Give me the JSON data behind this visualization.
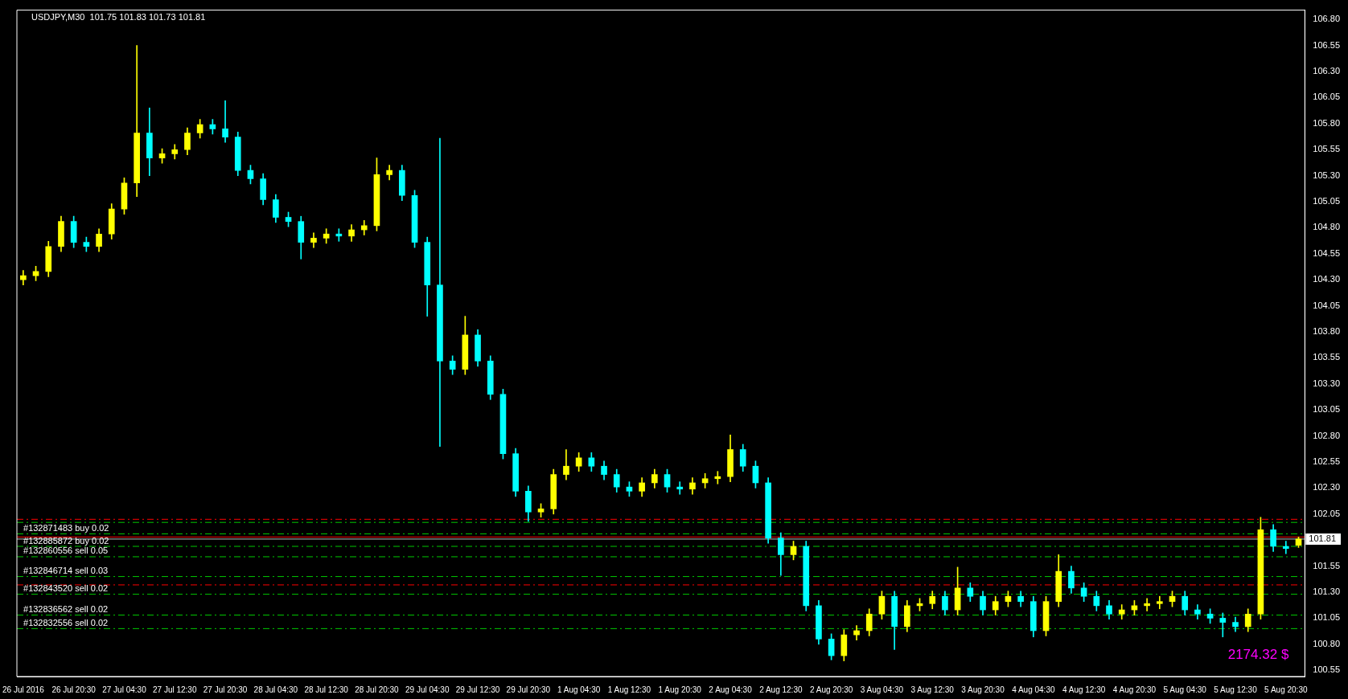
{
  "chart_data": {
    "type": "candlestick",
    "title": "USDJPY,M30  101.75 101.83 101.73 101.81",
    "categories": [
      "26 Jul 2016",
      null,
      null,
      null,
      "26 Jul 20:30",
      null,
      null,
      null,
      "27 Jul 04:30",
      null,
      null,
      null,
      "27 Jul 12:30",
      null,
      null,
      null,
      "27 Jul 20:30",
      null,
      null,
      null,
      "28 Jul 04:30",
      null,
      null,
      null,
      "28 Jul 12:30",
      null,
      null,
      null,
      "28 Jul 20:30",
      null,
      null,
      null,
      "29 Jul 04:30",
      null,
      null,
      null,
      "29 Jul 12:30",
      null,
      null,
      null,
      "29 Jul 20:30",
      null,
      null,
      null,
      "1 Aug 04:30",
      null,
      null,
      null,
      "1 Aug 12:30",
      null,
      null,
      null,
      "1 Aug 20:30",
      null,
      null,
      null,
      "2 Aug 04:30",
      null,
      null,
      null,
      "2 Aug 12:30",
      null,
      null,
      null,
      "2 Aug 20:30",
      null,
      null,
      null,
      "3 Aug 04:30",
      null,
      null,
      null,
      "3 Aug 12:30",
      null,
      null,
      null,
      "3 Aug 20:30",
      null,
      null,
      null,
      "4 Aug 04:30",
      null,
      null,
      null,
      "4 Aug 12:30",
      null,
      null,
      null,
      "4 Aug 20:30",
      null,
      null,
      null,
      "5 Aug 04:30",
      null,
      null,
      null,
      "5 Aug 12:30",
      null,
      null,
      null,
      "5 Aug 20:30",
      null
    ],
    "ohlc": [
      [
        104.3,
        104.39,
        104.25,
        104.34
      ],
      [
        104.34,
        104.43,
        104.29,
        104.38
      ],
      [
        104.38,
        104.67,
        104.33,
        104.62
      ],
      [
        104.62,
        104.91,
        104.57,
        104.86
      ],
      [
        104.86,
        104.91,
        104.61,
        104.66
      ],
      [
        104.66,
        104.71,
        104.57,
        104.62
      ],
      [
        104.62,
        104.79,
        104.57,
        104.74
      ],
      [
        104.74,
        105.03,
        104.69,
        104.98
      ],
      [
        104.98,
        105.28,
        104.93,
        105.23
      ],
      [
        105.23,
        106.55,
        105.1,
        105.71
      ],
      [
        105.71,
        105.95,
        105.3,
        105.47
      ],
      [
        105.47,
        105.56,
        105.42,
        105.51
      ],
      [
        105.51,
        105.6,
        105.46,
        105.55
      ],
      [
        105.55,
        105.76,
        105.5,
        105.71
      ],
      [
        105.71,
        105.84,
        105.66,
        105.79
      ],
      [
        105.79,
        105.84,
        105.7,
        105.75
      ],
      [
        105.75,
        106.02,
        105.62,
        105.67
      ],
      [
        105.67,
        105.72,
        105.3,
        105.35
      ],
      [
        105.35,
        105.4,
        105.22,
        105.27
      ],
      [
        105.27,
        105.32,
        105.02,
        105.07
      ],
      [
        105.07,
        105.12,
        104.85,
        104.9
      ],
      [
        104.9,
        104.95,
        104.81,
        104.86
      ],
      [
        104.86,
        104.91,
        104.5,
        104.66
      ],
      [
        104.66,
        104.75,
        104.61,
        104.7
      ],
      [
        104.7,
        104.79,
        104.65,
        104.74
      ],
      [
        104.74,
        104.79,
        104.67,
        104.72
      ],
      [
        104.72,
        104.83,
        104.67,
        104.78
      ],
      [
        104.78,
        104.87,
        104.73,
        104.82
      ],
      [
        104.82,
        105.47,
        104.77,
        105.31
      ],
      [
        105.31,
        105.4,
        105.26,
        105.35
      ],
      [
        105.35,
        105.4,
        105.06,
        105.11
      ],
      [
        105.11,
        105.16,
        104.61,
        104.66
      ],
      [
        104.66,
        104.71,
        103.95,
        104.25
      ],
      [
        104.25,
        105.66,
        102.7,
        103.52
      ],
      [
        103.52,
        103.57,
        103.39,
        103.44
      ],
      [
        103.44,
        103.95,
        103.39,
        103.77
      ],
      [
        103.77,
        103.82,
        103.47,
        103.52
      ],
      [
        103.52,
        103.57,
        103.15,
        103.2
      ],
      [
        103.2,
        103.25,
        102.58,
        102.63
      ],
      [
        102.63,
        102.68,
        102.22,
        102.27
      ],
      [
        102.27,
        102.32,
        101.98,
        102.07
      ],
      [
        102.07,
        102.15,
        102.02,
        102.1
      ],
      [
        102.1,
        102.48,
        102.05,
        102.43
      ],
      [
        102.43,
        102.67,
        102.38,
        102.51
      ],
      [
        102.51,
        102.64,
        102.46,
        102.59
      ],
      [
        102.59,
        102.64,
        102.46,
        102.51
      ],
      [
        102.51,
        102.56,
        102.38,
        102.43
      ],
      [
        102.43,
        102.48,
        102.26,
        102.31
      ],
      [
        102.31,
        102.36,
        102.22,
        102.27
      ],
      [
        102.27,
        102.4,
        102.22,
        102.35
      ],
      [
        102.35,
        102.48,
        102.3,
        102.43
      ],
      [
        102.43,
        102.48,
        102.26,
        102.31
      ],
      [
        102.31,
        102.36,
        102.24,
        102.29
      ],
      [
        102.29,
        102.4,
        102.24,
        102.35
      ],
      [
        102.35,
        102.44,
        102.3,
        102.39
      ],
      [
        102.39,
        102.46,
        102.34,
        102.41
      ],
      [
        102.41,
        102.81,
        102.36,
        102.67
      ],
      [
        102.67,
        102.72,
        102.46,
        102.51
      ],
      [
        102.51,
        102.56,
        102.3,
        102.35
      ],
      [
        102.35,
        102.4,
        101.77,
        101.82
      ],
      [
        101.82,
        101.87,
        101.46,
        101.66
      ],
      [
        101.66,
        101.79,
        101.61,
        101.74
      ],
      [
        101.74,
        101.79,
        101.12,
        101.17
      ],
      [
        101.17,
        101.22,
        100.8,
        100.85
      ],
      [
        100.85,
        100.9,
        100.65,
        100.69
      ],
      [
        100.69,
        100.94,
        100.64,
        100.89
      ],
      [
        100.89,
        100.98,
        100.84,
        100.93
      ],
      [
        100.93,
        101.14,
        100.88,
        101.09
      ],
      [
        101.09,
        101.31,
        101.04,
        101.26
      ],
      [
        101.26,
        101.31,
        100.75,
        100.97
      ],
      [
        100.97,
        101.22,
        100.92,
        101.17
      ],
      [
        101.17,
        101.24,
        101.12,
        101.19
      ],
      [
        101.19,
        101.31,
        101.14,
        101.26
      ],
      [
        101.26,
        101.31,
        101.08,
        101.13
      ],
      [
        101.13,
        101.54,
        101.08,
        101.34
      ],
      [
        101.34,
        101.39,
        101.21,
        101.26
      ],
      [
        101.26,
        101.31,
        101.08,
        101.13
      ],
      [
        101.13,
        101.26,
        101.08,
        101.21
      ],
      [
        101.21,
        101.31,
        101.16,
        101.26
      ],
      [
        101.26,
        101.31,
        101.16,
        101.21
      ],
      [
        101.21,
        101.26,
        100.87,
        100.93
      ],
      [
        100.93,
        101.26,
        100.88,
        101.21
      ],
      [
        101.21,
        101.66,
        101.16,
        101.5
      ],
      [
        101.5,
        101.55,
        101.29,
        101.34
      ],
      [
        101.34,
        101.39,
        101.21,
        101.26
      ],
      [
        101.26,
        101.31,
        101.12,
        101.17
      ],
      [
        101.17,
        101.22,
        101.04,
        101.09
      ],
      [
        101.09,
        101.18,
        101.04,
        101.13
      ],
      [
        101.13,
        101.22,
        101.08,
        101.17
      ],
      [
        101.17,
        101.24,
        101.12,
        101.19
      ],
      [
        101.19,
        101.26,
        101.14,
        101.21
      ],
      [
        101.21,
        101.31,
        101.16,
        101.26
      ],
      [
        101.26,
        101.31,
        101.08,
        101.13
      ],
      [
        101.13,
        101.18,
        101.04,
        101.09
      ],
      [
        101.09,
        101.14,
        101.0,
        101.05
      ],
      [
        101.05,
        101.1,
        100.87,
        101.01
      ],
      [
        101.01,
        101.06,
        100.92,
        100.97
      ],
      [
        100.97,
        101.14,
        100.92,
        101.09
      ],
      [
        101.09,
        102.02,
        101.04,
        101.9
      ],
      [
        101.9,
        101.95,
        101.69,
        101.74
      ],
      [
        101.74,
        101.79,
        101.67,
        101.72
      ],
      [
        101.75,
        101.83,
        101.73,
        101.81
      ]
    ],
    "colors": [
      "#ffff00",
      "#ffff00",
      "#ffff00",
      "#ffff00",
      "#00ffff",
      "#00ffff",
      "#ffff00",
      "#ffff00",
      "#ffff00",
      "#ffff00",
      "#00ffff",
      "#ffff00",
      "#ffff00",
      "#ffff00",
      "#ffff00",
      "#00ffff",
      "#00ffff",
      "#00ffff",
      "#00ffff",
      "#00ffff",
      "#00ffff",
      "#00ffff",
      "#00ffff",
      "#ffff00",
      "#ffff00",
      "#00ffff",
      "#ffff00",
      "#ffff00",
      "#ffff00",
      "#ffff00",
      "#00ffff",
      "#00ffff",
      "#00ffff",
      "#00ffff",
      "#00ffff",
      "#ffff00",
      "#00ffff",
      "#00ffff",
      "#00ffff",
      "#00ffff",
      "#00ffff",
      "#ffff00",
      "#ffff00",
      "#ffff00",
      "#ffff00",
      "#00ffff",
      "#00ffff",
      "#00ffff",
      "#00ffff",
      "#ffff00",
      "#ffff00",
      "#00ffff",
      "#00ffff",
      "#ffff00",
      "#ffff00",
      "#ffff00",
      "#ffff00",
      "#00ffff",
      "#00ffff",
      "#00ffff",
      "#00ffff",
      "#ffff00",
      "#00ffff",
      "#00ffff",
      "#00ffff",
      "#ffff00",
      "#ffff00",
      "#ffff00",
      "#ffff00",
      "#00ffff",
      "#ffff00",
      "#ffff00",
      "#ffff00",
      "#00ffff",
      "#ffff00",
      "#00ffff",
      "#00ffff",
      "#ffff00",
      "#ffff00",
      "#00ffff",
      "#00ffff",
      "#ffff00",
      "#ffff00",
      "#00ffff",
      "#00ffff",
      "#00ffff",
      "#00ffff",
      "#ffff00",
      "#ffff00",
      "#ffff00",
      "#ffff00",
      "#ffff00",
      "#00ffff",
      "#00ffff",
      "#00ffff",
      "#00ffff",
      "#00ffff",
      "#ffff00",
      "#ffff00",
      "#00ffff",
      "#00ffff",
      "#ffff00"
    ],
    "ylim": [
      100.49,
      106.89
    ],
    "yticks": [
      100.55,
      {
        "value": 100.8,
        "label": "100.80"
      },
      101.05,
      {
        "value": 101.3,
        "label": "101.30"
      },
      101.55,
      {
        "value": 101.8,
        "label": null
      },
      102.05,
      {
        "value": 102.3,
        "label": "102.30"
      },
      102.55,
      {
        "value": 102.8,
        "label": "102.80"
      },
      103.05,
      {
        "value": 103.3,
        "label": "103.30"
      },
      103.55,
      {
        "value": 103.8,
        "label": "103.80"
      },
      104.05,
      {
        "value": 104.3,
        "label": "104.30"
      },
      104.55,
      {
        "value": 104.8,
        "label": "104.80"
      },
      105.05,
      {
        "value": 105.3,
        "label": "105.30"
      },
      105.55,
      {
        "value": 105.8,
        "label": "105.80"
      },
      106.05,
      {
        "value": 106.3,
        "label": "106.30"
      },
      106.55,
      {
        "value": 106.8,
        "label": "106.80"
      }
    ],
    "ref_lines": [
      {
        "axis": "y",
        "value": 102.0,
        "color": "#ff0000",
        "line_style": "dashed"
      },
      {
        "axis": "y",
        "value": 101.97,
        "color": "#00c800",
        "line_style": "dashed"
      },
      {
        "axis": "y",
        "value": 101.86,
        "label": "#132871483 buy 0.02",
        "color": "#00c800",
        "line_style": "dashed"
      },
      {
        "axis": "y",
        "value": 101.83,
        "color": "#ff0000",
        "line_style": "solid"
      },
      {
        "axis": "y",
        "value": 101.81,
        "label": "101.81",
        "color": "#c0c0c0",
        "line_style": "solid"
      },
      {
        "axis": "y",
        "value": 101.74,
        "label": "#132885872 buy 0.02",
        "color": "#00c800",
        "line_style": "dashed"
      },
      {
        "axis": "y",
        "value": 101.64,
        "label": "#132860556 sell 0.05",
        "color": "#00c800",
        "line_style": "dashed"
      },
      {
        "axis": "y",
        "value": 101.45,
        "label": "#132846714 sell 0.03",
        "color": "#00c800",
        "line_style": "dashed"
      },
      {
        "axis": "y",
        "value": 101.37,
        "color": "#ff0000",
        "line_style": "dashed"
      },
      {
        "axis": "y",
        "value": 101.28,
        "label": "#132843520 sell 0.02",
        "color": "#00c800",
        "line_style": "dashed"
      },
      {
        "axis": "y",
        "value": 101.08,
        "label": "#132836562 sell 0.02",
        "color": "#00c800",
        "line_style": "dashed"
      },
      {
        "axis": "y",
        "value": 100.95,
        "label": "#132832556 sell 0.02",
        "color": "#00c800",
        "line_style": "dashed"
      }
    ],
    "annotations": [
      "2174.32 $"
    ],
    "grid": false,
    "legend": false
  }
}
